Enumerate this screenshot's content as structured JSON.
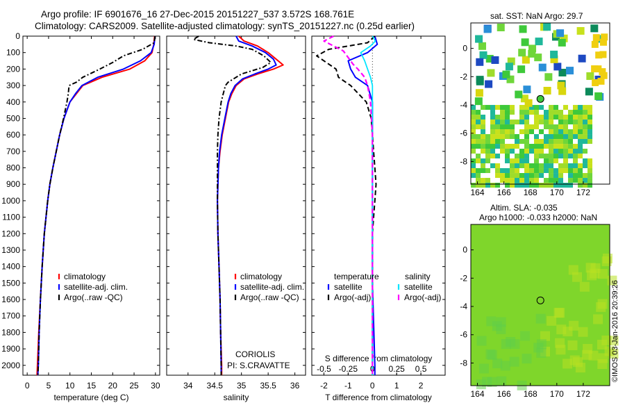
{
  "header": {
    "line1": "Argo profile: IF 6901676_16 27-Dec-2015 20151227_537 3.572S 168.761E",
    "line2": "Climatology: CARS2009. Satellite-adjusted climatology: synTS_20151227.nc (0.25d earlier)"
  },
  "depth_ticks": [
    "0",
    "100",
    "200",
    "300",
    "400",
    "500",
    "600",
    "700",
    "800",
    "900",
    "1000",
    "1100",
    "1200",
    "1300",
    "1400",
    "1500",
    "1600",
    "1700",
    "1800",
    "1900",
    "2000"
  ],
  "maps": {
    "sst": {
      "title": "sat. SST: NaN Argo: 29.7"
    },
    "sla": {
      "title1": "Altim. SLA: -0.035",
      "title2": "Argo h1000: -0.033 h2000: NaN"
    },
    "lat_ticks": [
      "0",
      "-2",
      "-4",
      "-6",
      "-8"
    ],
    "lon_ticks": [
      "164",
      "166",
      "168",
      "170",
      "172"
    ],
    "argo_position": {
      "lon": 168.761,
      "lat": -3.572
    }
  },
  "credit": "©IMOS 03-Jan-2016 20:39:26",
  "colors": {
    "climatology": "#ff0000",
    "satellite": "#0000ff",
    "argo": "#000000",
    "sal_satellite": "#00e5ff",
    "sal_argo": "#ff00ff",
    "map_bg": "#7fd62b"
  },
  "chart_data": [
    {
      "type": "line",
      "name": "temperature-panel",
      "xlabel": "temperature (deg C)",
      "ylabel": "",
      "xlim": [
        -1,
        31
      ],
      "ylim": [
        2060,
        0
      ],
      "x_ticks": [
        "0",
        "5",
        "10",
        "15",
        "20",
        "25",
        "30"
      ],
      "legend": [
        "climatology",
        "satellite-adj. clim.",
        "Argo(..raw -QC)"
      ],
      "series": [
        {
          "name": "climatology",
          "depth": [
            0,
            50,
            100,
            150,
            200,
            250,
            300,
            350,
            400,
            500,
            600,
            700,
            800,
            900,
            1000,
            1200,
            1400,
            1600,
            1800,
            2000,
            2060
          ],
          "values": [
            29.8,
            29.6,
            29.2,
            27.5,
            24,
            17.5,
            13,
            11.5,
            10,
            8.6,
            7.6,
            6.8,
            6.0,
            5.3,
            4.8,
            4.0,
            3.5,
            3.1,
            2.7,
            2.4,
            2.3
          ]
        },
        {
          "name": "satellite-adj. clim.",
          "depth": [
            0,
            50,
            100,
            150,
            200,
            250,
            300,
            350,
            400,
            500,
            600,
            700,
            800,
            900,
            1000,
            1200,
            1400,
            1600,
            1800,
            2000,
            2060
          ],
          "values": [
            29.9,
            29.7,
            29.0,
            26.5,
            22.5,
            16.5,
            12.8,
            11.3,
            10,
            8.6,
            7.6,
            6.8,
            6.0,
            5.3,
            4.8,
            4.0,
            3.5,
            3.1,
            2.8,
            2.6,
            2.5
          ]
        },
        {
          "name": "Argo(..raw -QC)",
          "depth": [
            0,
            40,
            80,
            120,
            160,
            200,
            250,
            280,
            300,
            350,
            400,
            500,
            600,
            700,
            800,
            900,
            1000,
            1200,
            1400,
            1600,
            1800,
            2000,
            2060
          ],
          "values": [
            29.9,
            29.7,
            27,
            22.5,
            20,
            17,
            13,
            11.5,
            9.8,
            9.6,
            9.3,
            8.5,
            7.6,
            6.8,
            6.0,
            5.3,
            4.8,
            4.0,
            3.5,
            3.1,
            2.8,
            2.6,
            2.5
          ]
        }
      ]
    },
    {
      "type": "line",
      "name": "salinity-panel",
      "xlabel": "salinity",
      "ylabel": "",
      "xlim": [
        33.6,
        36.2
      ],
      "ylim": [
        2060,
        0
      ],
      "x_ticks": [
        "34",
        "34.5",
        "35",
        "35.5",
        "36"
      ],
      "legend": [
        "climatology",
        "satellite-adj. clim.",
        "Argo(..raw -QC)"
      ],
      "annotations": [
        "CORIOLIS",
        "PI: S.CRAVATTE"
      ],
      "series": [
        {
          "name": "climatology",
          "depth": [
            0,
            30,
            60,
            100,
            140,
            175,
            200,
            230,
            260,
            300,
            350,
            400,
            500,
            600,
            700,
            800,
            1000,
            1200,
            1400,
            1600,
            1800,
            2000,
            2060
          ],
          "values": [
            34.95,
            35.05,
            35.3,
            35.5,
            35.65,
            35.78,
            35.6,
            35.3,
            35.05,
            34.9,
            34.82,
            34.76,
            34.7,
            34.64,
            34.6,
            34.57,
            34.55,
            34.56,
            34.58,
            34.6,
            34.61,
            34.63,
            34.63
          ]
        },
        {
          "name": "satellite-adj. clim.",
          "depth": [
            0,
            30,
            60,
            100,
            140,
            175,
            200,
            230,
            260,
            300,
            350,
            400,
            500,
            600,
            700,
            800,
            1000,
            1200,
            1400,
            1600,
            1800,
            2000,
            2060
          ],
          "values": [
            34.9,
            34.95,
            35.2,
            35.45,
            35.6,
            35.65,
            35.5,
            35.25,
            35.02,
            34.88,
            34.8,
            34.75,
            34.69,
            34.63,
            34.59,
            34.57,
            34.55,
            34.56,
            34.58,
            34.6,
            34.61,
            34.62,
            34.62
          ]
        },
        {
          "name": "Argo(..raw -QC)",
          "depth": [
            0,
            20,
            40,
            60,
            80,
            120,
            160,
            190,
            230,
            280,
            300,
            350,
            400,
            500,
            600,
            700,
            800,
            1000,
            1200,
            1400,
            1600,
            1800,
            2000,
            2060
          ],
          "values": [
            34.2,
            34.1,
            34.4,
            34.9,
            35.2,
            35.42,
            35.55,
            35.4,
            35.0,
            34.75,
            34.7,
            34.66,
            34.62,
            34.58,
            34.56,
            34.55,
            34.55,
            34.55,
            34.56,
            34.58,
            34.6,
            34.61,
            34.62,
            34.62
          ]
        }
      ]
    },
    {
      "type": "line",
      "name": "difference-panel",
      "xlabel": "T difference from climatology",
      "xlabel_top": "S difference from climatology",
      "xlim": [
        -2.5,
        3
      ],
      "ylim": [
        2060,
        0
      ],
      "x_ticks": [
        "-2",
        "-1",
        "0",
        "1",
        "2"
      ],
      "s_ticks": [
        "-0.5",
        "-0.25",
        "0",
        "0.25",
        "0.5"
      ],
      "legend": {
        "temperature": [
          "satellite",
          "Argo(-adj)"
        ],
        "salinity": [
          "satellite",
          "Argo(-adj)"
        ]
      },
      "series": [
        {
          "name": "satellite",
          "group": "temperature",
          "depth": [
            0,
            50,
            100,
            150,
            200,
            250,
            300,
            400,
            600,
            800,
            1000,
            1500,
            2000,
            2060
          ],
          "values": [
            0.1,
            0.2,
            -0.2,
            -1.0,
            -0.9,
            -0.7,
            -0.2,
            0,
            0,
            0,
            0,
            0,
            0.1,
            0.1
          ]
        },
        {
          "name": "Argo(-adj)",
          "group": "temperature",
          "depth": [
            0,
            40,
            80,
            120,
            160,
            200,
            250,
            300,
            400,
            500,
            600,
            700,
            800,
            900,
            1000,
            1100,
            1200,
            1400,
            1600,
            1800,
            2000,
            2060
          ],
          "values": [
            0.1,
            -0.2,
            -1.8,
            -2.3,
            -1.9,
            -1.5,
            -1.4,
            -0.9,
            -0.25,
            -0.05,
            0,
            0.05,
            0.1,
            0.15,
            0.1,
            0.05,
            0,
            0,
            0,
            0,
            0,
            0
          ]
        },
        {
          "name": "satellite",
          "group": "salinity",
          "depth": [
            0,
            30,
            60,
            100,
            150,
            200,
            250,
            300,
            400,
            600,
            800,
            1000,
            1500,
            2000,
            2060
          ],
          "values": [
            0,
            0.03,
            -0.02,
            -0.12,
            -0.08,
            -0.05,
            -0.02,
            0,
            0,
            0,
            0,
            0,
            0,
            0,
            0
          ]
        },
        {
          "name": "Argo(-adj)",
          "group": "salinity",
          "depth": [
            0,
            30,
            60,
            90,
            130,
            170,
            200,
            250,
            300,
            400,
            600,
            800,
            1000,
            1500,
            2000,
            2060
          ],
          "values": [
            -0.4,
            -0.5,
            -0.4,
            -0.3,
            -0.25,
            -0.2,
            -0.15,
            -0.08,
            -0.05,
            -0.02,
            0,
            0,
            0,
            0,
            0,
            0
          ]
        }
      ]
    }
  ]
}
